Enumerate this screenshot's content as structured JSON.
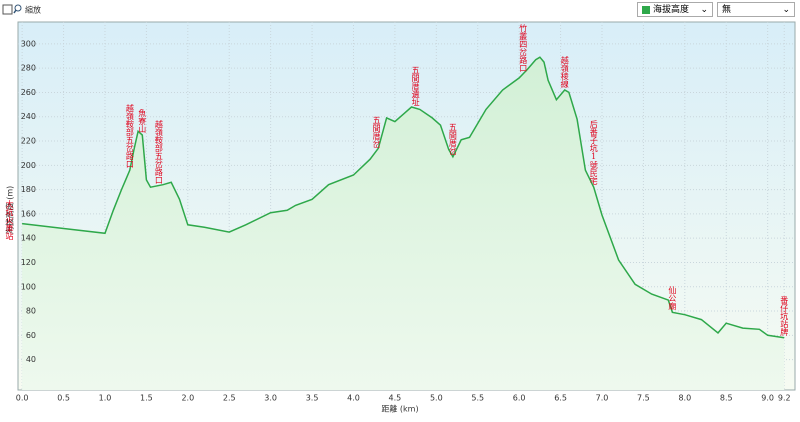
{
  "controls": {
    "zoom": "縮放",
    "overlay": "無"
  },
  "chart_data": {
    "type": "area-line",
    "xlabel": "距離 (km)",
    "ylabel": "海拔高度 (m)",
    "x": [
      0,
      0.5,
      1.0,
      1.1,
      1.2,
      1.3,
      1.35,
      1.4,
      1.45,
      1.5,
      1.55,
      1.7,
      1.8,
      1.9,
      2.0,
      2.2,
      2.5,
      2.7,
      3.0,
      3.2,
      3.3,
      3.5,
      3.7,
      4.0,
      4.2,
      4.3,
      4.4,
      4.5,
      4.6,
      4.7,
      4.8,
      4.95,
      5.05,
      5.15,
      5.2,
      5.3,
      5.4,
      5.6,
      5.8,
      6.0,
      6.1,
      6.2,
      6.25,
      6.3,
      6.35,
      6.45,
      6.55,
      6.6,
      6.7,
      6.8,
      6.9,
      7.0,
      7.2,
      7.4,
      7.6,
      7.8,
      7.85,
      8.0,
      8.2,
      8.4,
      8.5,
      8.7,
      8.9,
      9.0,
      9.2
    ],
    "series": [
      {
        "name": "海拔高度",
        "color": "#2ea84a",
        "values": [
          152,
          148,
          144,
          163,
          180,
          196,
          213,
          228,
          225,
          188,
          182,
          184,
          186,
          172,
          151,
          149,
          145,
          151,
          161,
          163,
          167,
          172,
          184,
          192,
          205,
          214,
          239,
          236,
          242,
          248,
          246,
          239,
          233,
          213,
          207,
          221,
          223,
          246,
          262,
          272,
          279,
          287,
          289,
          285,
          270,
          254,
          262,
          260,
          238,
          196,
          182,
          159,
          122,
          102,
          94,
          89,
          79,
          77,
          73,
          62,
          70,
          66,
          65,
          60,
          58
        ]
      }
    ],
    "xlim": [
      -0.05,
      9.33
    ],
    "ylim": [
      15,
      318
    ],
    "xticks": [
      {
        "value": 0,
        "label": "0.0"
      },
      0.5,
      {
        "value": 1,
        "label": "1.0"
      },
      1.5,
      {
        "value": 2,
        "label": "2.0"
      },
      2.5,
      {
        "value": 3,
        "label": "3.0"
      },
      3.5,
      {
        "value": 4,
        "label": "4.0"
      },
      4.5,
      {
        "value": 5,
        "label": "5.0"
      },
      5.5,
      {
        "value": 6,
        "label": "6.0"
      },
      6.5,
      {
        "value": 7,
        "label": "7.0"
      },
      7.5,
      {
        "value": 8,
        "label": "8.0"
      },
      8.5,
      {
        "value": 9,
        "label": "9.0"
      },
      9.2
    ],
    "yticks": [
      40,
      60,
      80,
      100,
      120,
      140,
      160,
      180,
      200,
      220,
      240,
      260,
      280,
      300
    ],
    "grid": true,
    "annotations": [
      {
        "text": "大坑火車站",
        "x": 0
      },
      {
        "text": "越嶺鞍部五岔路口",
        "x": 1.3
      },
      {
        "text": "魚寮山",
        "x": 1.45
      },
      {
        "text": "越嶺鞍部五岔路口",
        "x": 1.65
      },
      {
        "text": "五間厝岔",
        "x": 4.28
      },
      {
        "text": "五間厝遺址",
        "x": 4.75
      },
      {
        "text": "五間厝岔",
        "x": 5.2
      },
      {
        "text": "竹叢四岔路口",
        "x": 6.05
      },
      {
        "text": "越嶺稜線",
        "x": 6.55
      },
      {
        "text": "后番子坑1號民宅",
        "x": 6.9
      },
      {
        "text": "仙公廟",
        "x": 7.85
      },
      {
        "text": "番仔坑站牌",
        "x": 9.2
      }
    ]
  }
}
